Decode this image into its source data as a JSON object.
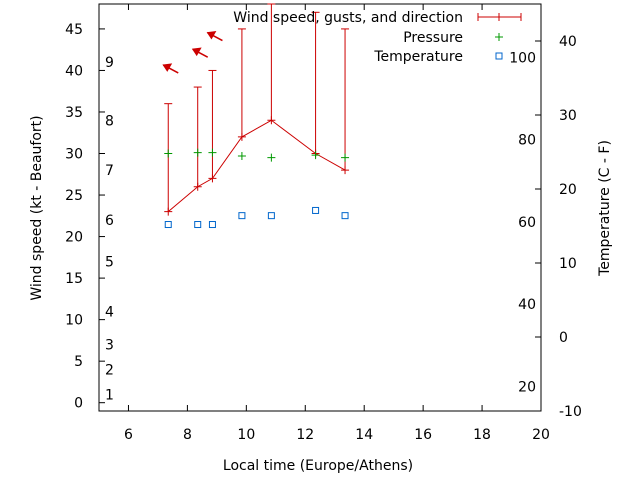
{
  "chart_data": {
    "type": "line",
    "xlabel": "Local time (Europe/Athens)",
    "ylabel_left": "Wind speed (kt - Beaufort)",
    "ylabel_right": "Temperature (C - F)",
    "xlim": [
      5,
      20
    ],
    "ylim_left": [
      -1,
      48
    ],
    "ylim_right_celsius": [
      -10,
      45
    ],
    "x_ticks": [
      "6",
      "8",
      "10",
      "12",
      "14",
      "16",
      "18",
      "20"
    ],
    "y_left_ticks": [
      "0",
      "5",
      "10",
      "15",
      "20",
      "25",
      "30",
      "35",
      "40",
      "45"
    ],
    "y_right_celsius_ticks": [
      "-10",
      "0",
      "10",
      "20",
      "30",
      "40"
    ],
    "beaufort_labels": [
      {
        "text": "1",
        "kt": 1
      },
      {
        "text": "2",
        "kt": 4
      },
      {
        "text": "3",
        "kt": 7
      },
      {
        "text": "4",
        "kt": 11
      },
      {
        "text": "5",
        "kt": 17
      },
      {
        "text": "6",
        "kt": 22
      },
      {
        "text": "7",
        "kt": 28
      },
      {
        "text": "8",
        "kt": 34
      },
      {
        "text": "9",
        "kt": 41
      }
    ],
    "fahrenheit_labels": [
      {
        "text": "20",
        "f": 20
      },
      {
        "text": "40",
        "f": 40
      },
      {
        "text": "60",
        "f": 60
      },
      {
        "text": "80",
        "f": 80
      },
      {
        "text": "100",
        "f": 100
      }
    ],
    "series": [
      {
        "name": "Wind speed, gusts, and direction",
        "color": "#cc0000",
        "points": [
          {
            "x": 7.35,
            "speed": 23,
            "gust": 36
          },
          {
            "x": 8.35,
            "speed": 26,
            "gust": 38
          },
          {
            "x": 8.85,
            "speed": 27,
            "gust": 40
          },
          {
            "x": 9.85,
            "speed": 32,
            "gust": 45
          },
          {
            "x": 10.85,
            "speed": 34,
            "gust": 48
          },
          {
            "x": 12.35,
            "speed": 30,
            "gust": 47
          },
          {
            "x": 13.35,
            "speed": 28,
            "gust": 45
          }
        ],
        "direction_arrows": [
          {
            "x": 7.35,
            "kt": 40.3
          },
          {
            "x": 8.35,
            "kt": 42.2
          },
          {
            "x": 8.85,
            "kt": 44.2
          }
        ]
      },
      {
        "name": "Pressure",
        "color": "#009900",
        "points": [
          {
            "x": 7.35,
            "y": 30.0
          },
          {
            "x": 8.35,
            "y": 30.1
          },
          {
            "x": 8.85,
            "y": 30.1
          },
          {
            "x": 9.85,
            "y": 29.7
          },
          {
            "x": 10.85,
            "y": 29.5
          },
          {
            "x": 12.35,
            "y": 29.8
          },
          {
            "x": 13.35,
            "y": 29.5
          }
        ]
      },
      {
        "name": "Temperature",
        "color": "#0066cc",
        "points": [
          {
            "x": 7.35,
            "celsius": 15.2
          },
          {
            "x": 8.35,
            "celsius": 15.2
          },
          {
            "x": 8.85,
            "celsius": 15.2
          },
          {
            "x": 9.85,
            "celsius": 16.4
          },
          {
            "x": 10.85,
            "celsius": 16.4
          },
          {
            "x": 12.35,
            "celsius": 17.1
          },
          {
            "x": 13.35,
            "celsius": 16.4
          }
        ]
      }
    ]
  }
}
